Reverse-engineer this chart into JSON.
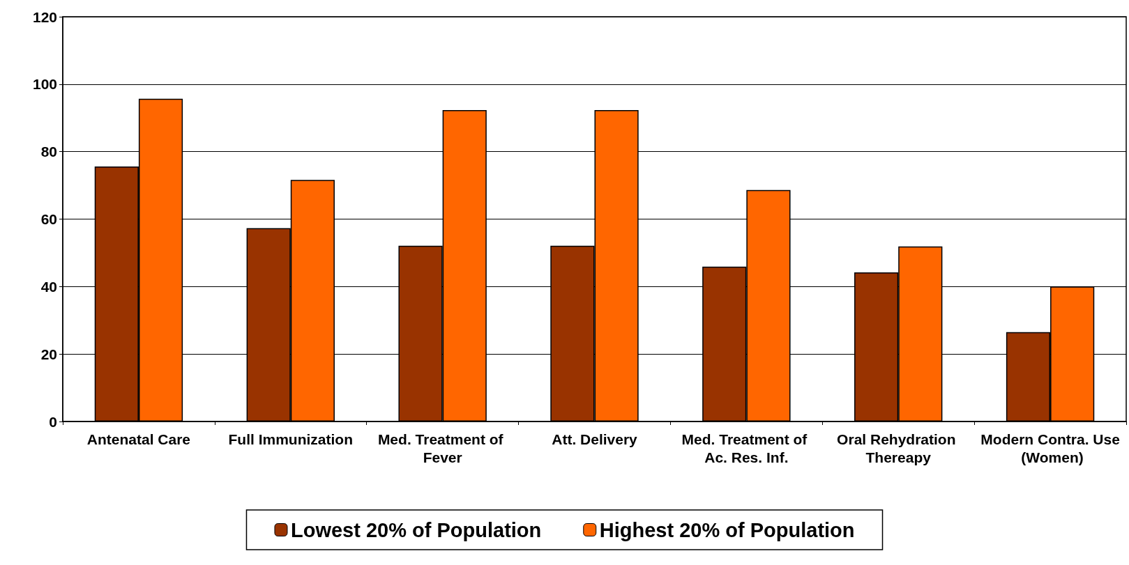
{
  "chart_data": {
    "type": "bar",
    "categories": [
      "Antenatal Care",
      "Full Immunization",
      "Med. Treatment of Fever",
      "Att. Delivery",
      "Med. Treatment of Ac. Res. Inf.",
      "Oral Rehydration Thereapy",
      "Modern Contra. Use (Women)"
    ],
    "series": [
      {
        "name": "Lowest 20% of Population",
        "color": "#993300",
        "values": [
          75.6,
          57.3,
          52.1,
          52.1,
          45.9,
          44.2,
          26.5
        ]
      },
      {
        "name": "Highest 20% of Population",
        "color": "#ff6600",
        "values": [
          95.7,
          71.6,
          92.3,
          92.3,
          68.6,
          51.9,
          40
        ]
      }
    ],
    "ylim": [
      0,
      120
    ],
    "yticks": [
      0,
      20,
      40,
      60,
      80,
      100,
      120
    ],
    "grid": "y",
    "legend": "bottom"
  }
}
